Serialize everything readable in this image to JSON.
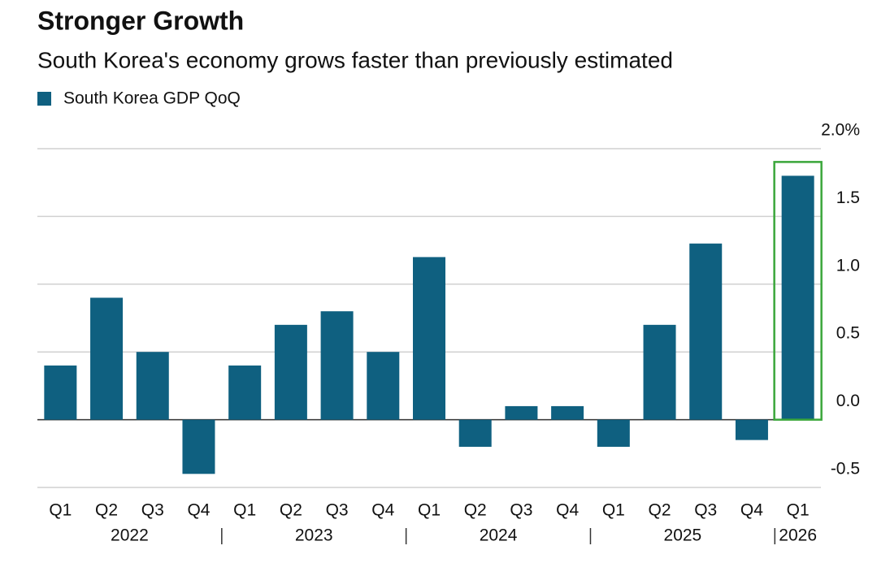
{
  "chart_data": {
    "type": "bar",
    "title": "Stronger Growth",
    "subtitle": "South Korea's economy grows faster than previously estimated",
    "categories": [
      "Q1",
      "Q2",
      "Q3",
      "Q4",
      "Q1",
      "Q2",
      "Q3",
      "Q4",
      "Q1",
      "Q2",
      "Q3",
      "Q4",
      "Q1",
      "Q2",
      "Q3",
      "Q4",
      "Q1"
    ],
    "years": [
      "2022",
      "2023",
      "2024",
      "2025",
      "2026"
    ],
    "series": [
      {
        "name": "South Korea GDP QoQ",
        "color": "#0f6080",
        "values": [
          0.4,
          0.9,
          0.5,
          -0.4,
          0.4,
          0.7,
          0.8,
          0.5,
          1.2,
          -0.2,
          0.1,
          0.1,
          -0.2,
          0.7,
          1.3,
          -0.15,
          1.8
        ]
      }
    ],
    "ylim": [
      -0.5,
      2.0
    ],
    "yticks": [
      {
        "value": 2.0,
        "label": "2.0%"
      },
      1.5,
      {
        "value": 1.0,
        "label": "1.0"
      },
      0.5,
      {
        "value": 0,
        "label": "0.0"
      },
      -0.5
    ],
    "grid": true,
    "highlight_color": "#3aa63a"
  }
}
